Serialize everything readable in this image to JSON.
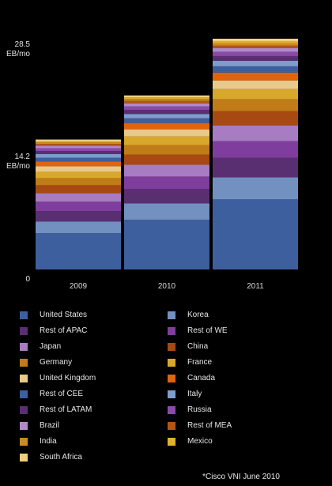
{
  "chart_data": {
    "type": "stacked-bar",
    "categories": [
      "2009",
      "2010",
      "2011"
    ],
    "y_ticks": [
      {
        "value": 28.5,
        "label": "28.5",
        "unit": "EB/mo"
      },
      {
        "value": 14.2,
        "label": "14.2",
        "unit": "EB/mo"
      },
      {
        "value": 0,
        "label": "0",
        "unit": ""
      }
    ],
    "ylim": [
      0,
      28.5
    ],
    "legend_placement": "bottom",
    "grid": false,
    "series": [
      {
        "name": "United States",
        "color": "#3d5f9e",
        "values": [
          4.6,
          6.3,
          8.9
        ]
      },
      {
        "name": "Korea",
        "color": "#7290c0",
        "values": [
          1.5,
          2.1,
          2.8
        ]
      },
      {
        "name": "Rest of APAC",
        "color": "#5a2f72",
        "values": [
          1.3,
          1.8,
          2.5
        ]
      },
      {
        "name": "Rest of WE",
        "color": "#7f3d9d",
        "values": [
          1.2,
          1.6,
          2.1
        ]
      },
      {
        "name": "Japan",
        "color": "#a77cc2",
        "values": [
          1.1,
          1.5,
          2.0
        ]
      },
      {
        "name": "China",
        "color": "#a64a12",
        "values": [
          1.0,
          1.3,
          1.8
        ]
      },
      {
        "name": "Germany",
        "color": "#c07c18",
        "values": [
          0.9,
          1.2,
          1.5
        ]
      },
      {
        "name": "France",
        "color": "#d8a82a",
        "values": [
          0.8,
          1.1,
          1.3
        ]
      },
      {
        "name": "United Kingdom",
        "color": "#e9c98a",
        "values": [
          0.7,
          0.9,
          1.1
        ]
      },
      {
        "name": "Canada",
        "color": "#e0630e",
        "values": [
          0.6,
          0.8,
          1.0
        ]
      },
      {
        "name": "Rest of CEE",
        "color": "#3d5f9e",
        "values": [
          0.5,
          0.6,
          0.8
        ]
      },
      {
        "name": "Italy",
        "color": "#7e9ccc",
        "values": [
          0.45,
          0.55,
          0.7
        ]
      },
      {
        "name": "Rest of LATAM",
        "color": "#5a2f72",
        "values": [
          0.4,
          0.5,
          0.6
        ]
      },
      {
        "name": "Russia",
        "color": "#8a4aa8",
        "values": [
          0.35,
          0.45,
          0.55
        ]
      },
      {
        "name": "Brazil",
        "color": "#b08ac8",
        "values": [
          0.3,
          0.4,
          0.45
        ]
      },
      {
        "name": "Rest of MEA",
        "color": "#b0561a",
        "values": [
          0.25,
          0.3,
          0.35
        ]
      },
      {
        "name": "India",
        "color": "#cc8a22",
        "values": [
          0.2,
          0.25,
          0.3
        ]
      },
      {
        "name": "Mexico",
        "color": "#e0b030",
        "values": [
          0.15,
          0.2,
          0.25
        ]
      },
      {
        "name": "South Africa",
        "color": "#f0cf78",
        "values": [
          0.1,
          0.15,
          0.2
        ]
      }
    ]
  },
  "source_note": "*Cisco VNI June 2010"
}
